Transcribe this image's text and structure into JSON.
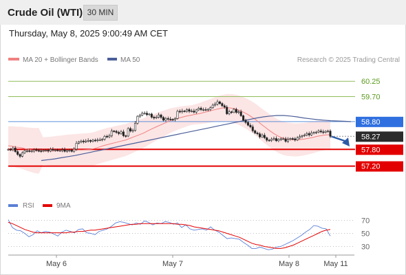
{
  "header": {
    "instrument": "Crude Oil (WTI)",
    "timeframe": "30 MIN"
  },
  "timestamp": "Thursday, May 8, 2025 9:00:49 AM CET",
  "legend": {
    "bollinger": "MA 20 + Bollinger Bands",
    "ma50": "MA 50",
    "credit": "Research © 2025 Trading Central"
  },
  "rsi_legend": {
    "rsi": "RSI",
    "ma": "9MA"
  },
  "colors": {
    "bollinger": "#f08080",
    "band_fill": "#fbdede",
    "ma50": "#4a5e99",
    "green": "#8fbc5a",
    "green_text": "#5a9a1e",
    "blue_line": "#5b8fd9",
    "blue_label": "#2f6fe0",
    "red": "#e30000",
    "current": "#2b2b2b",
    "candle": "#222222",
    "arrow": "#2b5ba7",
    "rsi": "#5b7fd6",
    "rsi_ma": "#e30000"
  },
  "chart_data": [
    {
      "type": "line",
      "name": "price",
      "x_ticks": [
        "May 6",
        "May 7",
        "May 8",
        "May 11"
      ],
      "candles": [
        57.8,
        57.79,
        57.85,
        57.72,
        57.62,
        57.55,
        57.68,
        57.75,
        57.75,
        57.73,
        57.74,
        57.79,
        57.76,
        57.75,
        57.74,
        57.77,
        57.77,
        57.74,
        57.8,
        57.78,
        57.78,
        57.76,
        57.76,
        57.79,
        57.73,
        57.76,
        57.77,
        57.73,
        57.81,
        58.02,
        58.07,
        58.1,
        58.07,
        58.1,
        58.12,
        58.09,
        58.13,
        58.12,
        58.14,
        58.14,
        58.17,
        58.27,
        58.25,
        58.29,
        58.46,
        58.45,
        58.41,
        58.37,
        58.43,
        58.29,
        58.28,
        58.55,
        58.46,
        58.48,
        58.74,
        58.99,
        59.03,
        59.1,
        59.1,
        59.05,
        59.07,
        58.96,
        58.93,
        58.96,
        59.04,
        58.95,
        58.85,
        58.91,
        58.89,
        58.88,
        58.87,
        58.91,
        59.17,
        59.15,
        59.18,
        59.17,
        59.23,
        59.17,
        59.18,
        59.14,
        59.22,
        59.28,
        59.23,
        59.23,
        59.22,
        59.24,
        59.3,
        59.39,
        59.43,
        59.51,
        59.45,
        59.37,
        59.32,
        59.08,
        59.15,
        59.14,
        59.24,
        59.13,
        59.15,
        59.01,
        58.85,
        58.77,
        58.67,
        58.61,
        58.47,
        58.39,
        58.36,
        58.25,
        58.31,
        58.22,
        58.13,
        58.12,
        58.17,
        58.19,
        58.11,
        58.16,
        58.18,
        58.18,
        58.09,
        58.16,
        58.19,
        58.18,
        58.14,
        58.21,
        58.26,
        58.29,
        58.32,
        58.37,
        58.32,
        58.39,
        58.41,
        58.42,
        58.46,
        58.43,
        58.41,
        58.45,
        58.46,
        58.27
      ],
      "ma20": [
        57.93,
        57.91,
        57.88,
        57.86,
        57.82,
        57.79,
        57.76,
        57.75,
        57.74,
        57.74,
        57.74,
        57.75,
        57.75,
        57.76,
        57.77,
        57.77,
        57.78,
        57.78,
        57.79,
        57.8,
        57.84,
        57.89,
        57.94,
        57.98,
        58.02,
        58.06,
        58.1,
        58.14,
        58.2,
        58.26,
        58.32,
        58.38,
        58.46,
        58.54,
        58.61,
        58.68,
        58.75,
        58.82,
        58.87,
        58.92,
        58.96,
        59.0,
        59.03,
        59.06,
        59.09,
        59.13,
        59.17,
        59.21,
        59.25,
        59.28,
        59.3,
        59.29,
        59.26,
        59.21,
        59.14,
        59.06,
        58.96,
        58.85,
        58.72,
        58.6,
        58.48,
        58.37,
        58.28,
        58.21,
        58.17,
        58.15,
        58.14,
        58.15,
        58.17,
        58.2,
        58.23,
        58.27,
        58.3,
        58.32,
        58.33
      ],
      "ma50": [
        57.4,
        57.43,
        57.46,
        57.5,
        57.54,
        57.58,
        57.63,
        57.68,
        57.73,
        57.78,
        57.83,
        57.88,
        57.93,
        57.98,
        58.03,
        58.08,
        58.13,
        58.18,
        58.23,
        58.28,
        58.33,
        58.38,
        58.43,
        58.48,
        58.53,
        58.58,
        58.63,
        58.68,
        58.73,
        58.78,
        58.83,
        58.88,
        58.93,
        58.97,
        59.0,
        59.02,
        59.02,
        59.0,
        58.97,
        58.93,
        58.9,
        58.87,
        58.85,
        58.83,
        58.82,
        58.81,
        58.8
      ],
      "levels": [
        {
          "value": "60.25",
          "kind": "green"
        },
        {
          "value": "59.70",
          "kind": "green"
        },
        {
          "value": "58.80",
          "kind": "blue"
        },
        {
          "value": "58.27",
          "kind": "current"
        },
        {
          "value": "57.80",
          "kind": "red"
        },
        {
          "value": "57.20",
          "kind": "red"
        }
      ],
      "ylim": [
        56.25,
        60.7
      ]
    },
    {
      "type": "line",
      "name": "rsi",
      "y_ticks": [
        70,
        50,
        30
      ],
      "ylim": [
        20,
        80
      ],
      "series": [
        {
          "name": "RSI",
          "values": [
            71,
            59,
            55,
            54,
            50,
            45,
            48,
            54,
            51,
            53,
            52,
            49,
            46,
            52,
            55,
            53,
            51,
            56,
            57,
            51,
            50,
            48,
            53,
            55,
            57,
            61,
            66,
            68,
            67,
            65,
            63,
            66,
            64,
            69,
            67,
            63,
            66,
            65,
            68,
            67,
            64,
            66,
            59,
            63,
            57,
            55,
            56,
            57,
            55,
            60,
            55,
            52,
            47,
            42,
            43,
            42,
            41,
            36,
            32,
            27,
            27,
            29,
            27,
            25,
            26,
            29,
            30,
            33,
            36,
            39,
            43,
            47,
            52,
            56,
            62,
            61,
            58,
            57,
            46
          ]
        },
        {
          "name": "9MA",
          "values": [
            67,
            65,
            62,
            59,
            56,
            54,
            52,
            51,
            51,
            51,
            51,
            51,
            51,
            51,
            51,
            52,
            52,
            53,
            53,
            54,
            55,
            55,
            56,
            57,
            58,
            59,
            60,
            61,
            62,
            63,
            64,
            64,
            65,
            65,
            65,
            65,
            65,
            65,
            65,
            65,
            65,
            64,
            64,
            63,
            62,
            60,
            59,
            58,
            57,
            56,
            55,
            54,
            52,
            50,
            48,
            46,
            44,
            41,
            38,
            35,
            33,
            32,
            30,
            29,
            28,
            27,
            27,
            28,
            30,
            32,
            35,
            38,
            41,
            44,
            47,
            50,
            53,
            55,
            56
          ]
        }
      ]
    }
  ]
}
